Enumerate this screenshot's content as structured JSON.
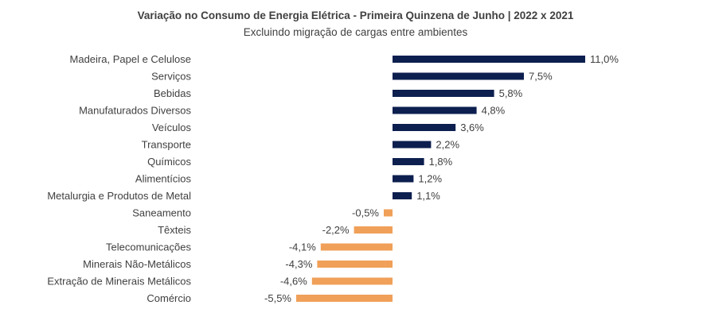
{
  "chart_data": {
    "type": "bar",
    "orientation": "horizontal",
    "title": "Variação no Consumo de Energia Elétrica - Primeira Quinzena de Junho | 2022 x 2021",
    "subtitle": "Excluindo migração de cargas entre ambientes",
    "categories": [
      "Madeira, Papel e Celulose",
      "Serviços",
      "Bebidas",
      "Manufaturados Diversos",
      "Veículos",
      "Transporte",
      "Químicos",
      "Alimentícios",
      "Metalurgia e Produtos de Metal",
      "Saneamento",
      "Têxteis",
      "Telecomunicações",
      "Minerais Não-Metálicos",
      "Extração de Minerais Metálicos",
      "Comércio"
    ],
    "values": [
      11.0,
      7.5,
      5.8,
      4.8,
      3.6,
      2.2,
      1.8,
      1.2,
      1.1,
      -0.5,
      -2.2,
      -4.1,
      -4.3,
      -4.6,
      -5.5
    ],
    "value_labels": [
      "11,0%",
      "7,5%",
      "5,8%",
      "4,8%",
      "3,6%",
      "2,2%",
      "1,8%",
      "1,2%",
      "1,1%",
      "-0,5%",
      "-2,2%",
      "-4,1%",
      "-4,3%",
      "-4,6%",
      "-5,5%"
    ],
    "unit": "%",
    "colors": {
      "positive": "#0c1f4f",
      "negative": "#f0a058"
    },
    "grid": false,
    "legend": "none"
  }
}
